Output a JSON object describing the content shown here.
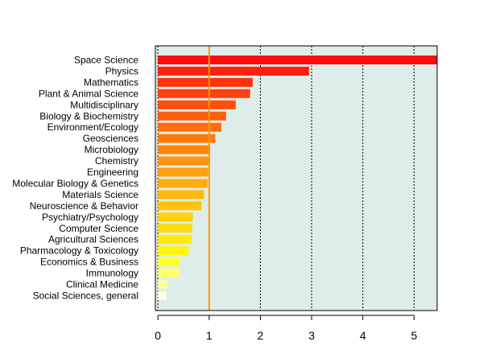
{
  "chart_data": {
    "type": "bar",
    "orientation": "horizontal",
    "categories": [
      "Space Science",
      "Physics",
      "Mathematics",
      "Plant & Animal Science",
      "Multidisciplinary",
      "Biology & Biochemistry",
      "Environment/Ecology",
      "Geosciences",
      "Microbiology",
      "Chemistry",
      "Engineering",
      "Molecular Biology & Genetics",
      "Materials Science",
      "Neuroscience & Behavior",
      "Psychiatry/Psychology",
      "Computer Science",
      "Agricultural Sciences",
      "Pharmacology & Toxicology",
      "Economics & Business",
      "Immunology",
      "Clinical Medicine",
      "Social Sciences, general"
    ],
    "values": [
      5.45,
      2.95,
      1.85,
      1.8,
      1.52,
      1.33,
      1.24,
      1.12,
      1.02,
      1.0,
      0.98,
      0.97,
      0.9,
      0.85,
      0.68,
      0.67,
      0.66,
      0.6,
      0.43,
      0.41,
      0.19,
      0.17
    ],
    "bar_colors": [
      "#ff0d0d",
      "#ff1f0d",
      "#ff310d",
      "#ff400d",
      "#ff4f0d",
      "#ff5e0d",
      "#ff6d0d",
      "#ff7a0d",
      "#ff870d",
      "#ff940d",
      "#ffa00d",
      "#ffac0d",
      "#ffb80d",
      "#ffc40d",
      "#ffd10d",
      "#ffdd0d",
      "#ffea0d",
      "#fff60d",
      "#ffff30",
      "#ffff6a",
      "#ffffa8",
      "#ffffe0"
    ],
    "x_ticks": [
      0,
      1,
      2,
      3,
      4,
      5
    ],
    "xlim": [
      -0.05,
      5.45
    ],
    "reference_line": {
      "x": 1,
      "color": "#ff9900"
    },
    "plot_background": "#deedea",
    "grid": "vertical dotted",
    "xlabel": "",
    "ylabel": "",
    "title": ""
  }
}
